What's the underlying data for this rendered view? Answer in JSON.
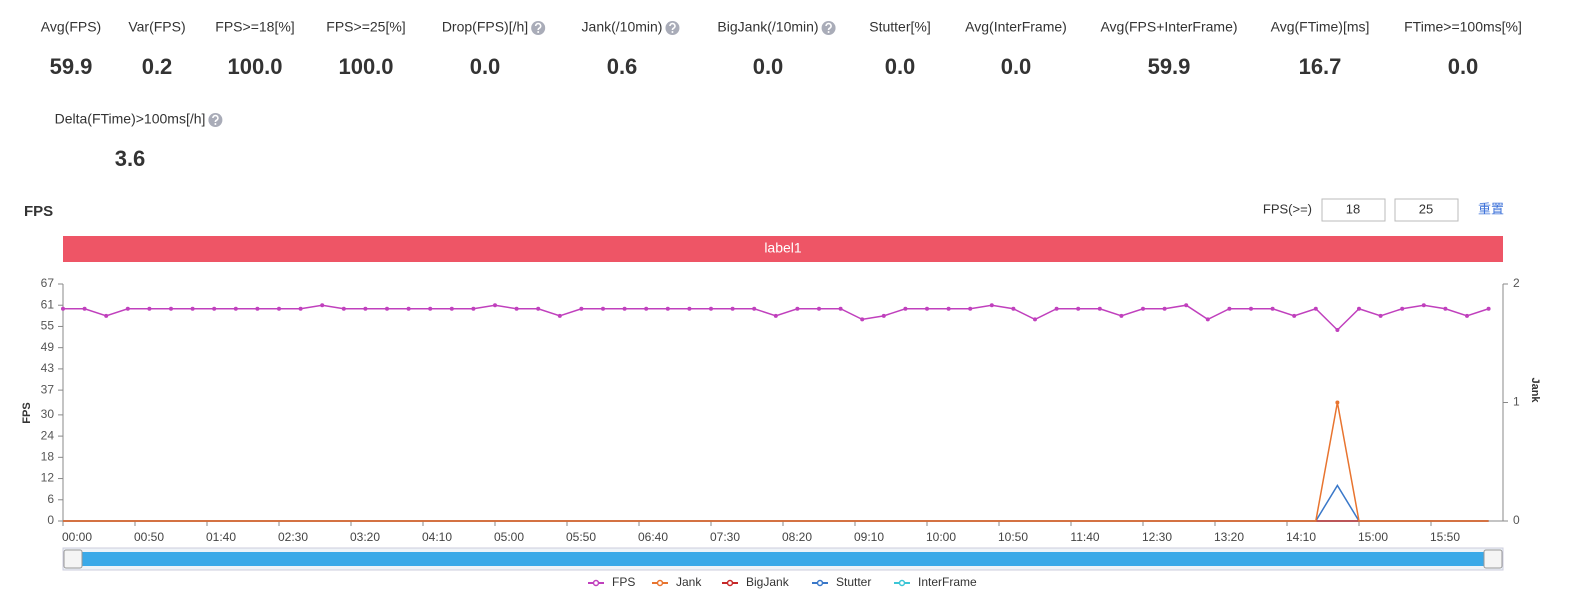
{
  "metrics": [
    {
      "label": "Avg(FPS)",
      "value": "59.9"
    },
    {
      "label": "Var(FPS)",
      "value": "0.2"
    },
    {
      "label": "FPS>=18[%]",
      "value": "100.0"
    },
    {
      "label": "FPS>=25[%]",
      "value": "100.0"
    },
    {
      "label": "Drop(FPS)[/h]",
      "value": "0.0",
      "help": true
    },
    {
      "label": "Jank(/10min)",
      "value": "0.6",
      "help": true
    },
    {
      "label": "BigJank(/10min)",
      "value": "0.0",
      "help": true
    },
    {
      "label": "Stutter[%]",
      "value": "0.0"
    },
    {
      "label": "Avg(InterFrame)",
      "value": "0.0"
    },
    {
      "label": "Avg(FPS+InterFrame)",
      "value": "59.9"
    },
    {
      "label": "Avg(FTime)[ms]",
      "value": "16.7"
    },
    {
      "label": "FTime>=100ms[%]",
      "value": "0.0"
    },
    {
      "label": "Delta(FTime)>100ms[/h]",
      "value": "3.6",
      "help": true
    }
  ],
  "controls": {
    "label": "FPS(>=)",
    "inputs": [
      "18",
      "25"
    ],
    "reset": "重置"
  },
  "chart_data": {
    "type": "line",
    "title": "FPS",
    "band_label": "label1",
    "band_color": "#ee5566",
    "ylabel": "FPS",
    "y2label": "Jank",
    "x": [
      0,
      15,
      30,
      45,
      60,
      75,
      90,
      105,
      120,
      135,
      150,
      165,
      180,
      195,
      210,
      225,
      240,
      255,
      270,
      285,
      300,
      315,
      330,
      345,
      360,
      375,
      390,
      405,
      420,
      435,
      450,
      465,
      480,
      495,
      510,
      525,
      540,
      555,
      570,
      585,
      600,
      615,
      630,
      645,
      660,
      675,
      690,
      705,
      720,
      735,
      750,
      765,
      780,
      795,
      810,
      825,
      840,
      855,
      870,
      885,
      900,
      915,
      930,
      945,
      960,
      975,
      990
    ],
    "series": [
      {
        "name": "FPS",
        "color": "#c040bd",
        "markers": true,
        "values": [
          60,
          60,
          58,
          60,
          60,
          60,
          60,
          60,
          60,
          60,
          60,
          60,
          61,
          60,
          60,
          60,
          60,
          60,
          60,
          60,
          61,
          60,
          60,
          58,
          60,
          60,
          60,
          60,
          60,
          60,
          60,
          60,
          60,
          58,
          60,
          60,
          60,
          57,
          58,
          60,
          60,
          60,
          60,
          61,
          60,
          57,
          60,
          60,
          60,
          58,
          60,
          60,
          61,
          57,
          60,
          60,
          60,
          58,
          60,
          54,
          60,
          58,
          60,
          61,
          60,
          58,
          60
        ]
      },
      {
        "name": "Jank",
        "color": "#e8742f",
        "axis": "y2",
        "values": [
          0,
          0,
          0,
          0,
          0,
          0,
          0,
          0,
          0,
          0,
          0,
          0,
          0,
          0,
          0,
          0,
          0,
          0,
          0,
          0,
          0,
          0,
          0,
          0,
          0,
          0,
          0,
          0,
          0,
          0,
          0,
          0,
          0,
          0,
          0,
          0,
          0,
          0,
          0,
          0,
          0,
          0,
          0,
          0,
          0,
          0,
          0,
          0,
          0,
          0,
          0,
          0,
          0,
          0,
          0,
          0,
          0,
          0,
          0,
          1,
          0,
          0,
          0,
          0,
          0,
          0,
          0
        ]
      },
      {
        "name": "BigJank",
        "color": "#c62828",
        "axis": "y2",
        "values": [
          0,
          0,
          0,
          0,
          0,
          0,
          0,
          0,
          0,
          0,
          0,
          0,
          0,
          0,
          0,
          0,
          0,
          0,
          0,
          0,
          0,
          0,
          0,
          0,
          0,
          0,
          0,
          0,
          0,
          0,
          0,
          0,
          0,
          0,
          0,
          0,
          0,
          0,
          0,
          0,
          0,
          0,
          0,
          0,
          0,
          0,
          0,
          0,
          0,
          0,
          0,
          0,
          0,
          0,
          0,
          0,
          0,
          0,
          0,
          0,
          0,
          0,
          0,
          0,
          0,
          0,
          0
        ]
      },
      {
        "name": "Stutter",
        "color": "#3a78c9",
        "axis": "y2",
        "values": [
          0,
          0,
          0,
          0,
          0,
          0,
          0,
          0,
          0,
          0,
          0,
          0,
          0,
          0,
          0,
          0,
          0,
          0,
          0,
          0,
          0,
          0,
          0,
          0,
          0,
          0,
          0,
          0,
          0,
          0,
          0,
          0,
          0,
          0,
          0,
          0,
          0,
          0,
          0,
          0,
          0,
          0,
          0,
          0,
          0,
          0,
          0,
          0,
          0,
          0,
          0,
          0,
          0,
          0,
          0,
          0,
          0,
          0,
          0,
          0.3,
          0,
          0,
          0,
          0,
          0,
          0,
          0
        ]
      },
      {
        "name": "InterFrame",
        "color": "#3cc6d6",
        "axis": "y2",
        "values": [
          0,
          0,
          0,
          0,
          0,
          0,
          0,
          0,
          0,
          0,
          0,
          0,
          0,
          0,
          0,
          0,
          0,
          0,
          0,
          0,
          0,
          0,
          0,
          0,
          0,
          0,
          0,
          0,
          0,
          0,
          0,
          0,
          0,
          0,
          0,
          0,
          0,
          0,
          0,
          0,
          0,
          0,
          0,
          0,
          0,
          0,
          0,
          0,
          0,
          0,
          0,
          0,
          0,
          0,
          0,
          0,
          0,
          0,
          0,
          0,
          0,
          0,
          0,
          0,
          0,
          0,
          0
        ]
      }
    ],
    "xlim": [
      0,
      1000
    ],
    "xticks": [
      {
        "value": 0,
        "label": "00:00"
      },
      {
        "value": 50,
        "label": "00:50"
      },
      {
        "value": 100,
        "label": "01:40"
      },
      {
        "value": 150,
        "label": "02:30"
      },
      {
        "value": 200,
        "label": "03:20"
      },
      {
        "value": 250,
        "label": "04:10"
      },
      {
        "value": 300,
        "label": "05:00"
      },
      {
        "value": 350,
        "label": "05:50"
      },
      {
        "value": 400,
        "label": "06:40"
      },
      {
        "value": 450,
        "label": "07:30"
      },
      {
        "value": 500,
        "label": "08:20"
      },
      {
        "value": 550,
        "label": "09:10"
      },
      {
        "value": 600,
        "label": "10:00"
      },
      {
        "value": 650,
        "label": "10:50"
      },
      {
        "value": 700,
        "label": "11:40"
      },
      {
        "value": 750,
        "label": "12:30"
      },
      {
        "value": 800,
        "label": "13:20"
      },
      {
        "value": 850,
        "label": "14:10"
      },
      {
        "value": 900,
        "label": "15:00"
      },
      {
        "value": 950,
        "label": "15:50"
      }
    ],
    "ylim": [
      0,
      67
    ],
    "yticks": [
      0,
      6,
      12,
      18,
      24,
      30,
      37,
      43,
      49,
      55,
      61,
      67
    ],
    "y2lim": [
      0,
      2
    ],
    "y2ticks": [
      0,
      1,
      2
    ]
  }
}
